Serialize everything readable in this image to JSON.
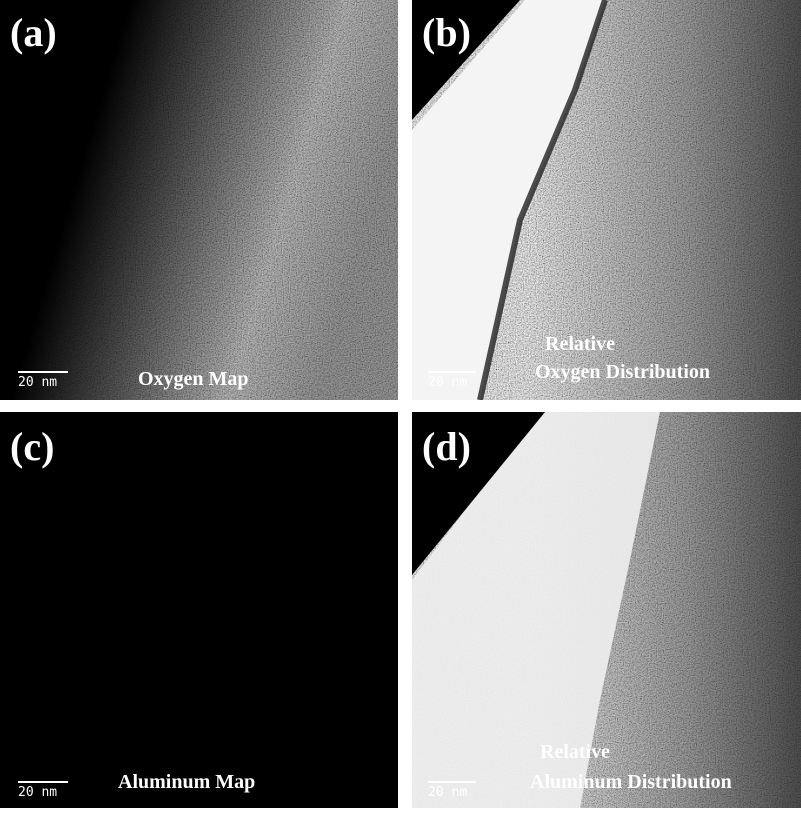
{
  "panels": [
    {
      "label": "(a)",
      "scale_bar": "20 nm",
      "caption": [
        "Oxygen Map"
      ]
    },
    {
      "label": "(b)",
      "scale_bar": "20 nm",
      "caption": [
        "Relative",
        "Oxygen Distribution"
      ]
    },
    {
      "label": "(c)",
      "scale_bar": "20 nm",
      "caption": [
        "Aluminum Map"
      ]
    },
    {
      "label": "(d)",
      "scale_bar": "20 nm",
      "caption": [
        "Relative",
        "Aluminum Distribution"
      ]
    }
  ]
}
